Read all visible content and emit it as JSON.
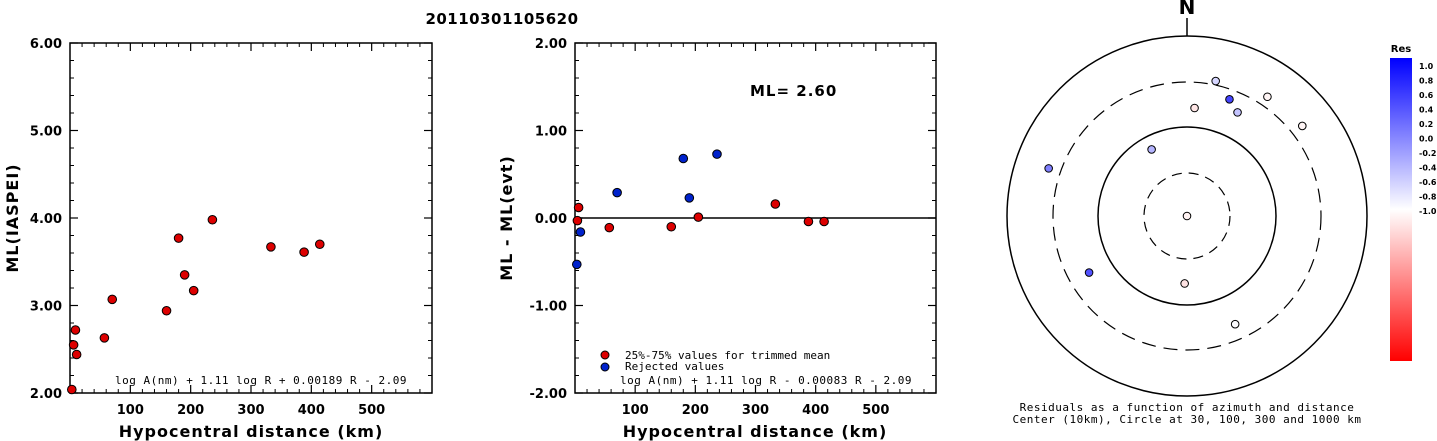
{
  "title": "20110301105620",
  "colors": {
    "accepted": "#dd0000",
    "rejected": "#0022cc",
    "axis": "#000000"
  },
  "chart_data": [
    {
      "type": "scatter",
      "xlabel": "Hypocentral distance (km)",
      "ylabel": "ML(IASPEI)",
      "xlim": [
        0,
        600
      ],
      "ylim": [
        2.0,
        6.0
      ],
      "xticks": [
        "100",
        "200",
        "300",
        "400",
        "500"
      ],
      "yticks": [
        "2.00",
        "3.00",
        "4.00",
        "5.00",
        "6.00"
      ],
      "formula": "log A(nm) + 1.11 log R + 0.00189 R - 2.09",
      "points": [
        {
          "x": 3,
          "y": 2.04
        },
        {
          "x": 6,
          "y": 2.55
        },
        {
          "x": 9,
          "y": 2.72
        },
        {
          "x": 11,
          "y": 2.44
        },
        {
          "x": 57,
          "y": 2.63
        },
        {
          "x": 70,
          "y": 3.07
        },
        {
          "x": 160,
          "y": 2.94
        },
        {
          "x": 180,
          "y": 3.77
        },
        {
          "x": 190,
          "y": 3.35
        },
        {
          "x": 205,
          "y": 3.17
        },
        {
          "x": 236,
          "y": 3.98
        },
        {
          "x": 333,
          "y": 3.67
        },
        {
          "x": 388,
          "y": 3.61
        },
        {
          "x": 414,
          "y": 3.7
        }
      ]
    },
    {
      "type": "scatter",
      "xlabel": "Hypocentral distance (km)",
      "ylabel": "ML - ML(evt)",
      "xlim": [
        0,
        600
      ],
      "ylim": [
        -2.0,
        2.0
      ],
      "xticks": [
        "100",
        "200",
        "300",
        "400",
        "500"
      ],
      "yticks": [
        "-2.00",
        "-1.00",
        "0.00",
        "1.00",
        "2.00"
      ],
      "ml_label": "ML= 2.60",
      "formula": "log A(nm) + 1.11 log R - 0.00083 R - 2.09",
      "legend": {
        "accepted": "25%-75% values for trimmed mean",
        "rejected": "Rejected values"
      },
      "series": [
        {
          "status": "accepted",
          "points": [
            {
              "x": 6,
              "y": 0.12
            },
            {
              "x": 4,
              "y": -0.03
            },
            {
              "x": 57,
              "y": -0.11
            },
            {
              "x": 160,
              "y": -0.1
            },
            {
              "x": 205,
              "y": 0.01
            },
            {
              "x": 333,
              "y": 0.16
            },
            {
              "x": 388,
              "y": -0.04
            },
            {
              "x": 414,
              "y": -0.04
            }
          ]
        },
        {
          "status": "rejected",
          "points": [
            {
              "x": 3,
              "y": -0.53
            },
            {
              "x": 9,
              "y": -0.16
            },
            {
              "x": 70,
              "y": 0.29
            },
            {
              "x": 180,
              "y": 0.68
            },
            {
              "x": 190,
              "y": 0.23
            },
            {
              "x": 236,
              "y": 0.73
            }
          ]
        }
      ]
    },
    {
      "type": "scatter",
      "subtype": "polar",
      "north_label": "N",
      "caption_line1": "Residuals as a function of azimuth and distance",
      "caption_line2": "Center (10km), Circle at 30, 100, 300 and 1000 km",
      "colorbar": {
        "title": "Res",
        "ticks": [
          "1.0",
          "0.8",
          "0.6",
          "0.4",
          "0.2",
          "0.0",
          "-0.2",
          "-0.4",
          "-0.6",
          "-0.8",
          "-1.0"
        ],
        "max_color": "#0000ff",
        "mid_color": "#ffffff",
        "min_color": "#ff0000"
      },
      "points": [
        {
          "azimuth_deg": 0,
          "distance_km": 3,
          "residual": -0.05
        },
        {
          "azimuth_deg": 182,
          "distance_km": 57,
          "residual": -0.11
        },
        {
          "azimuth_deg": 332,
          "distance_km": 70,
          "residual": 0.29
        },
        {
          "azimuth_deg": 4,
          "distance_km": 160,
          "residual": -0.1
        },
        {
          "azimuth_deg": 240,
          "distance_km": 180,
          "residual": 0.68
        },
        {
          "azimuth_deg": 26,
          "distance_km": 190,
          "residual": 0.23
        },
        {
          "azimuth_deg": 156,
          "distance_km": 205,
          "residual": 0.01
        },
        {
          "azimuth_deg": 20,
          "distance_km": 236,
          "residual": 0.73
        },
        {
          "azimuth_deg": 12,
          "distance_km": 333,
          "residual": 0.16
        },
        {
          "azimuth_deg": 34,
          "distance_km": 388,
          "residual": -0.04
        },
        {
          "azimuth_deg": 52,
          "distance_km": 414,
          "residual": -0.04
        },
        {
          "azimuth_deg": 289,
          "distance_km": 414,
          "residual": 0.5
        }
      ]
    }
  ]
}
